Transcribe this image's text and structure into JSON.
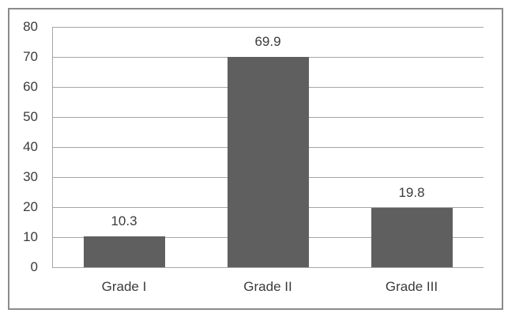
{
  "chart_data": {
    "type": "bar",
    "title": "",
    "categories": [
      "Grade I",
      "Grade II",
      "Grade III"
    ],
    "values": [
      10.3,
      69.9,
      19.8
    ],
    "value_labels": [
      "10.3",
      "69.9",
      "19.8"
    ],
    "xlabel": "",
    "ylabel": "",
    "ylim": [
      0,
      80
    ],
    "yticks": [
      0,
      10,
      20,
      30,
      40,
      50,
      60,
      70,
      80
    ],
    "grid": "horizontal",
    "legend": "none",
    "data_labels_position": "above-bars",
    "colors": {
      "bar": "#5f5f5f",
      "gridline": "#a6a6a6",
      "axis_line": "#a6a6a6",
      "label_text": "#3b3b3b",
      "frame_border": "#8b8b8b",
      "background": "#ffffff"
    }
  }
}
